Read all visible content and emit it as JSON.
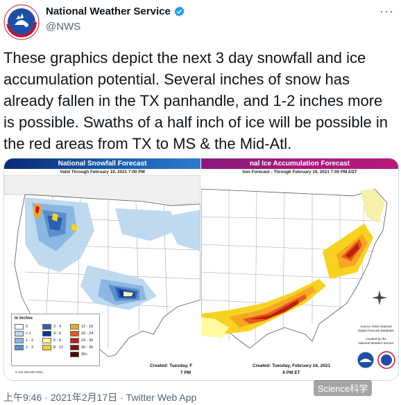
{
  "account": {
    "display_name": "National Weather Service",
    "handle": "@NWS",
    "avatar_icon": "nws-logo",
    "verified_icon": "verified-badge-icon",
    "more_icon": "more-options-icon",
    "avatar_text": "NATIONAL WEATHER SERVICE"
  },
  "tweet": {
    "text": "These graphics depict the next 3 day snowfall and ice accumulation potential. Several inches of snow has already fallen in the TX panhandle, and 1-2 inches more is possible. Swaths of a half inch of ice will be possible in the red areas from TX to MS & the Mid-Atl."
  },
  "media": {
    "snow_map": {
      "banner": "National Snowfall Forecast",
      "valid": "Valid Through February 19, 2021 7:00 PM",
      "created": "Created: Tuesday, F",
      "created_time": "7 PM",
      "legend_title": "In Inches",
      "legend": [
        {
          "label": "0",
          "color": "#ffffff"
        },
        {
          "label": "< 1",
          "color": "#bcd7ee"
        },
        {
          "label": "1 - 2",
          "color": "#8bb8e0"
        },
        {
          "label": "2 - 3",
          "color": "#5a8fcc"
        },
        {
          "label": "3 - 4",
          "color": "#2d5fb5"
        },
        {
          "label": "4 - 6",
          "color": "#12309a"
        },
        {
          "label": "6 - 8",
          "color": "#fffaa0"
        },
        {
          "label": "8 - 12",
          "color": "#f7d21e"
        },
        {
          "label": "12 - 18",
          "color": "#f5a623"
        },
        {
          "label": "18 - 24",
          "color": "#e8581c"
        },
        {
          "label": "24 - 30",
          "color": "#c21d12"
        },
        {
          "label": "30 - 36",
          "color": "#8a0d10"
        },
        {
          "label": "36+",
          "color": "#4a0508"
        }
      ],
      "scale": "0   125   250        500 Miles"
    },
    "ice_map": {
      "banner": "nal Ice Accumulation Forecast",
      "valid": "tion Forecast - Through February 19, 2021 7:00 PM EDT",
      "created": "Created: Tuesday, February 16, 2021",
      "created_time": "6 PM ET",
      "source_1": "Source: NWS National",
      "source_2": "Digital Forecast Database",
      "created_by_1": "Created by the",
      "created_by_2": "National Weather Service",
      "compass_icon": "compass-icon"
    }
  },
  "footer": {
    "timestamp": "上午9:46 · 2021年2月17日 · Twitter Web App",
    "watermark": "Science科学"
  }
}
